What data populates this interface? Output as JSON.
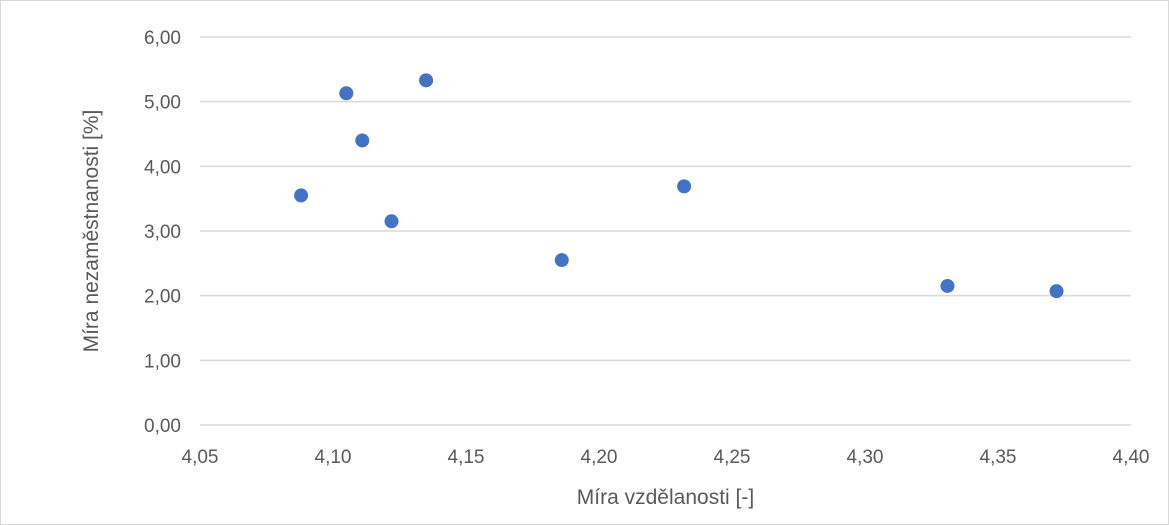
{
  "chart_data": {
    "type": "scatter",
    "title": "",
    "xlabel": "Míra vzdělanosti [-]",
    "ylabel": "Míra nezaměstnanosti [%]",
    "xlim": [
      4.05,
      4.4
    ],
    "ylim": [
      0,
      6
    ],
    "x_ticks": [
      4.05,
      4.1,
      4.15,
      4.2,
      4.25,
      4.3,
      4.35,
      4.4
    ],
    "y_ticks": [
      0,
      1,
      2,
      3,
      4,
      5,
      6
    ],
    "x_tick_labels": [
      "4,05",
      "4,10",
      "4,15",
      "4,20",
      "4,25",
      "4,30",
      "4,35",
      "4,40"
    ],
    "y_tick_labels": [
      "0,00",
      "1,00",
      "2,00",
      "3,00",
      "4,00",
      "5,00",
      "6,00"
    ],
    "grid": {
      "horizontal": true,
      "vertical": false
    },
    "legend": "none",
    "marker_color": "#4472c4",
    "gridline_color": "#d9d9d9",
    "series": [
      {
        "points": [
          {
            "x": 4.088,
            "y": 3.55
          },
          {
            "x": 4.105,
            "y": 5.13
          },
          {
            "x": 4.111,
            "y": 4.4
          },
          {
            "x": 4.122,
            "y": 3.15
          },
          {
            "x": 4.135,
            "y": 5.33
          },
          {
            "x": 4.186,
            "y": 2.55
          },
          {
            "x": 4.232,
            "y": 3.69
          },
          {
            "x": 4.331,
            "y": 2.15
          },
          {
            "x": 4.372,
            "y": 2.07
          }
        ]
      }
    ]
  }
}
